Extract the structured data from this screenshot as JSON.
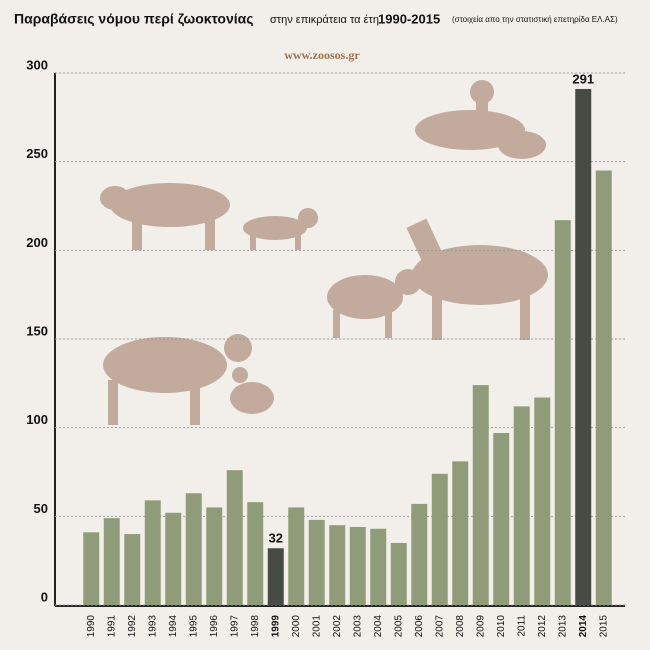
{
  "chart_data": {
    "type": "bar",
    "title": "Παραβάσεις νόμου περί ζωοκτονίας",
    "subtitle": "στην επικράτεια τα έτη",
    "period": "1990-2015",
    "source": "(στοιχεία απο την στατιστική επετηρίδα ΕΛ.ΑΣ)",
    "logo": "www.zoosos.gr",
    "categories": [
      "1990",
      "1991",
      "1992",
      "1993",
      "1994",
      "1995",
      "1996",
      "1997",
      "1998",
      "1999",
      "2000",
      "2001",
      "2002",
      "2003",
      "2004",
      "2005",
      "2006",
      "2007",
      "2008",
      "2009",
      "2010",
      "2011",
      "2012",
      "2013",
      "2014",
      "2015"
    ],
    "values": [
      41,
      49,
      40,
      59,
      52,
      63,
      55,
      76,
      58,
      32,
      55,
      48,
      45,
      44,
      43,
      35,
      57,
      74,
      81,
      124,
      97,
      112,
      117,
      217,
      291,
      245
    ],
    "colors": [
      "#8f9b79",
      "#8f9b79",
      "#8f9b79",
      "#8f9b79",
      "#8f9b79",
      "#8f9b79",
      "#8f9b79",
      "#8f9b79",
      "#8f9b79",
      "#464c44",
      "#8f9b79",
      "#8f9b79",
      "#8f9b79",
      "#8f9b79",
      "#8f9b79",
      "#8f9b79",
      "#8f9b79",
      "#8f9b79",
      "#8f9b79",
      "#8f9b79",
      "#8f9b79",
      "#8f9b79",
      "#8f9b79",
      "#8f9b79",
      "#464c44",
      "#8f9b79"
    ],
    "highlight_color": "#464c44",
    "ylim": [
      0,
      300
    ],
    "yticks": [
      0,
      50,
      100,
      150,
      200,
      250,
      300
    ],
    "grid": true
  }
}
